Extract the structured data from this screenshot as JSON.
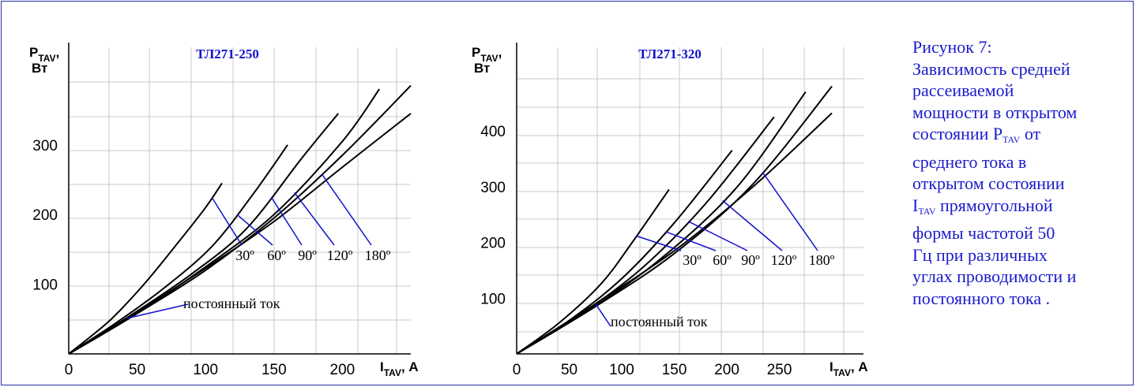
{
  "chart_data": [
    {
      "type": "line",
      "title": "ТЛ271-250",
      "ylabel": {
        "main": "P",
        "sub": "TAV",
        "suffix": ",",
        "unit": "Вт"
      },
      "xlabel": {
        "main": "I",
        "sub": "TAV",
        "suffix": ", А"
      },
      "xlim": [
        0,
        250
      ],
      "ylim": [
        0,
        440
      ],
      "xticks": [
        0,
        50,
        100,
        150,
        200
      ],
      "yticks": [
        100,
        200,
        300
      ],
      "grid": true,
      "series": [
        {
          "name": "30º",
          "x": [
            0,
            30,
            55,
            80,
            100,
            112
          ],
          "y": [
            0,
            48,
            100,
            160,
            210,
            245
          ]
        },
        {
          "name": "60º",
          "x": [
            0,
            35,
            70,
            105,
            135,
            160
          ],
          "y": [
            0,
            45,
            95,
            155,
            230,
            300
          ]
        },
        {
          "name": "90º",
          "x": [
            0,
            45,
            90,
            130,
            170,
            197
          ],
          "y": [
            0,
            55,
            115,
            180,
            280,
            345
          ]
        },
        {
          "name": "120º",
          "x": [
            0,
            50,
            100,
            150,
            200,
            227
          ],
          "y": [
            0,
            58,
            125,
            200,
            305,
            380
          ]
        },
        {
          "name": "180º",
          "x": [
            0,
            50,
            100,
            150,
            200,
            250
          ],
          "y": [
            0,
            58,
            120,
            195,
            285,
            385
          ]
        },
        {
          "name": "постоянный ток",
          "x": [
            0,
            50,
            100,
            150,
            200,
            250
          ],
          "y": [
            0,
            60,
            123,
            190,
            268,
            345
          ]
        }
      ],
      "annotations": [
        "30º",
        "60º",
        "90º",
        "120º",
        "180º",
        "постоянный ток"
      ]
    },
    {
      "type": "line",
      "title": "ТЛ271-320",
      "ylabel": {
        "main": "P",
        "sub": "TAV",
        "suffix": ",",
        "unit": "Вт"
      },
      "xlabel": {
        "main": "I",
        "sub": "TAV",
        "suffix": ", А"
      },
      "xlim": [
        0,
        330
      ],
      "ylim": [
        0,
        550
      ],
      "xticks": [
        0,
        50,
        100,
        150,
        200,
        250
      ],
      "yticks": [
        100,
        200,
        300,
        400
      ],
      "grid": true,
      "series": [
        {
          "name": "30º",
          "x": [
            0,
            40,
            80,
            110,
            145
          ],
          "y": [
            0,
            55,
            125,
            200,
            295
          ]
        },
        {
          "name": "60º",
          "x": [
            0,
            50,
            100,
            150,
            205
          ],
          "y": [
            0,
            60,
            135,
            235,
            365
          ]
        },
        {
          "name": "90º",
          "x": [
            0,
            60,
            120,
            180,
            245
          ],
          "y": [
            0,
            70,
            155,
            270,
            425
          ]
        },
        {
          "name": "120º",
          "x": [
            0,
            70,
            140,
            210,
            275
          ],
          "y": [
            0,
            80,
            175,
            300,
            470
          ]
        },
        {
          "name": "180º",
          "x": [
            0,
            75,
            150,
            225,
            300
          ],
          "y": [
            0,
            85,
            180,
            305,
            480
          ]
        },
        {
          "name": "постоянный ток",
          "x": [
            0,
            75,
            150,
            225,
            300
          ],
          "y": [
            0,
            90,
            185,
            300,
            432
          ]
        }
      ],
      "annotations": [
        "30º",
        "60º",
        "90º",
        "120º",
        "180º",
        "постоянный ток"
      ]
    }
  ],
  "caption": {
    "line1": "Рисунок 7:",
    "line2": "Зависимость средней",
    "line3": "рассеиваемой",
    "line4": "мощности в открытом",
    "line5a": "состоянии P",
    "line5sub": "TAV",
    "line5b": " от",
    "line6": "среднего тока в",
    "line7": "открытом состоянии",
    "line8a": "I",
    "line8sub": "TAV",
    "line8b": " прямоугольной",
    "line9": "формы частотой 50",
    "line10": "Гц при различных",
    "line11": "углах проводимости и",
    "line12": "постоянного тока ."
  },
  "colors": {
    "frame": "#2a2aa8",
    "accent": "#1111cc",
    "curve": "#000000",
    "grid": "#c8c8c8"
  }
}
